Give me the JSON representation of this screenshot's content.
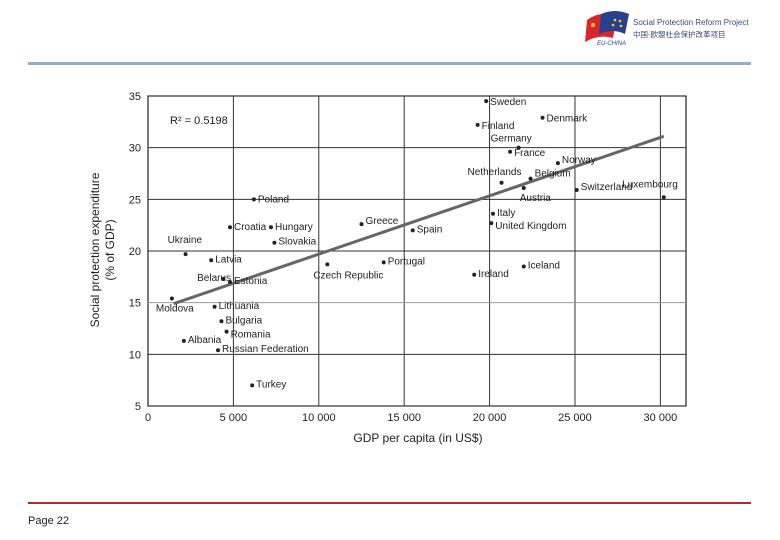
{
  "header": {
    "logo_title": "Social Protection Reform Project",
    "logo_subtitle": "中国-欧盟社会保护改革项目",
    "logo_badge": "EU-CHINA"
  },
  "footer": {
    "page_label": "Page 22"
  },
  "colors": {
    "top_rule": "#8fb0cc",
    "bottom_rule": "#b02a2a",
    "trend_line": "#666666",
    "points": "#222222"
  },
  "chart_data": {
    "type": "scatter",
    "xlabel": "GDP per capita (in US$)",
    "ylabel": "Social protection expenditure (% of GDP)",
    "annotation": "R² = 0.5198",
    "xlim": [
      0,
      31500
    ],
    "ylim": [
      5,
      35
    ],
    "xticks": [
      0,
      5000,
      10000,
      15000,
      20000,
      25000,
      30000
    ],
    "xtick_labels": [
      "0",
      "5 000",
      "10 000",
      "15 000",
      "20 000",
      "25 000",
      "30 000"
    ],
    "yticks": [
      5,
      10,
      15,
      20,
      25,
      30,
      35
    ],
    "grid": true,
    "trendline": {
      "x": [
        1500,
        30200
      ],
      "y": [
        14.9,
        31.1
      ]
    },
    "points": [
      {
        "name": "Sweden",
        "x": 19800,
        "y": 34.5
      },
      {
        "name": "Finland",
        "x": 19300,
        "y": 32.2
      },
      {
        "name": "Denmark",
        "x": 23100,
        "y": 32.9
      },
      {
        "name": "Germany",
        "x": 21700,
        "y": 30.0
      },
      {
        "name": "France",
        "x": 21200,
        "y": 29.6
      },
      {
        "name": "Norway",
        "x": 24000,
        "y": 28.5
      },
      {
        "name": "Netherlands",
        "x": 20700,
        "y": 26.6
      },
      {
        "name": "Belgium",
        "x": 22400,
        "y": 27.0
      },
      {
        "name": "Luxembourg",
        "x": 30200,
        "y": 25.2
      },
      {
        "name": "Austria",
        "x": 22000,
        "y": 26.1
      },
      {
        "name": "Switzerland",
        "x": 25100,
        "y": 25.9
      },
      {
        "name": "Italy",
        "x": 20200,
        "y": 23.6
      },
      {
        "name": "United Kingdom",
        "x": 20100,
        "y": 22.7
      },
      {
        "name": "Poland",
        "x": 6200,
        "y": 25.0
      },
      {
        "name": "Croatia",
        "x": 4800,
        "y": 22.3
      },
      {
        "name": "Hungary",
        "x": 7200,
        "y": 22.3
      },
      {
        "name": "Slovakia",
        "x": 7400,
        "y": 20.8
      },
      {
        "name": "Greece",
        "x": 12500,
        "y": 22.6
      },
      {
        "name": "Spain",
        "x": 15500,
        "y": 22.0
      },
      {
        "name": "Ukraine",
        "x": 2200,
        "y": 19.7
      },
      {
        "name": "Latvia",
        "x": 3700,
        "y": 19.1
      },
      {
        "name": "Belarus",
        "x": 4400,
        "y": 17.3
      },
      {
        "name": "Estonia",
        "x": 4800,
        "y": 17.0
      },
      {
        "name": "Czech Republic",
        "x": 10500,
        "y": 18.7
      },
      {
        "name": "Portugal",
        "x": 13800,
        "y": 18.9
      },
      {
        "name": "Ireland",
        "x": 19100,
        "y": 17.7
      },
      {
        "name": "Iceland",
        "x": 22000,
        "y": 18.5
      },
      {
        "name": "Moldova",
        "x": 1400,
        "y": 15.4
      },
      {
        "name": "Lithuania",
        "x": 3900,
        "y": 14.6
      },
      {
        "name": "Bulgaria",
        "x": 4300,
        "y": 13.2
      },
      {
        "name": "Romania",
        "x": 4600,
        "y": 12.2
      },
      {
        "name": "Albania",
        "x": 2100,
        "y": 11.3
      },
      {
        "name": "Russian Federation",
        "x": 4100,
        "y": 10.4
      },
      {
        "name": "Turkey",
        "x": 6100,
        "y": 7.0
      }
    ]
  }
}
